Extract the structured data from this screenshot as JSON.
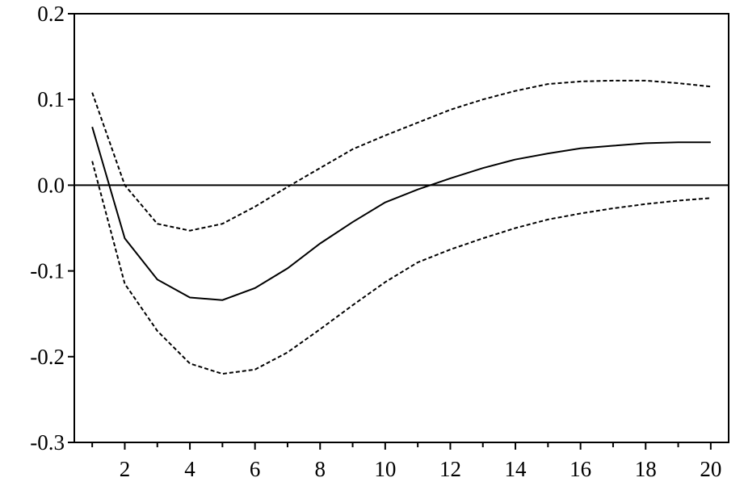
{
  "chart_data": {
    "type": "line",
    "x": [
      1,
      2,
      3,
      4,
      5,
      6,
      7,
      8,
      9,
      10,
      11,
      12,
      13,
      14,
      15,
      16,
      17,
      18,
      19,
      20
    ],
    "series": [
      {
        "color": "#000000",
        "style": "solid",
        "values": [
          0.068,
          -0.062,
          -0.11,
          -0.131,
          -0.134,
          -0.12,
          -0.097,
          -0.068,
          -0.043,
          -0.02,
          -0.005,
          0.008,
          0.02,
          0.03,
          0.037,
          0.043,
          0.046,
          0.049,
          0.05,
          0.05
        ]
      },
      {
        "color": "#000000",
        "style": "dashed",
        "values": [
          0.108,
          0.0,
          -0.045,
          -0.053,
          -0.045,
          -0.025,
          -0.002,
          0.02,
          0.042,
          0.058,
          0.073,
          0.088,
          0.1,
          0.11,
          0.118,
          0.121,
          0.122,
          0.122,
          0.119,
          0.115
        ]
      },
      {
        "color": "#000000",
        "style": "dashed",
        "values": [
          0.028,
          -0.115,
          -0.17,
          -0.208,
          -0.22,
          -0.215,
          -0.195,
          -0.168,
          -0.14,
          -0.113,
          -0.09,
          -0.075,
          -0.062,
          -0.05,
          -0.04,
          -0.033,
          -0.027,
          -0.022,
          -0.018,
          -0.015
        ]
      }
    ],
    "xlim": [
      0.45,
      20.55
    ],
    "xticks": [
      2,
      4,
      6,
      8,
      10,
      12,
      14,
      16,
      18,
      20
    ],
    "minor_xticks": [
      1,
      3,
      5,
      7,
      9,
      11,
      13,
      15,
      17,
      19
    ],
    "ylim": [
      -0.3,
      0.2
    ],
    "yticks": [
      0.2,
      0.1,
      {
        "value": 0,
        "label": "0.0"
      },
      -0.1,
      -0.2,
      -0.3
    ],
    "zero_line": true
  }
}
